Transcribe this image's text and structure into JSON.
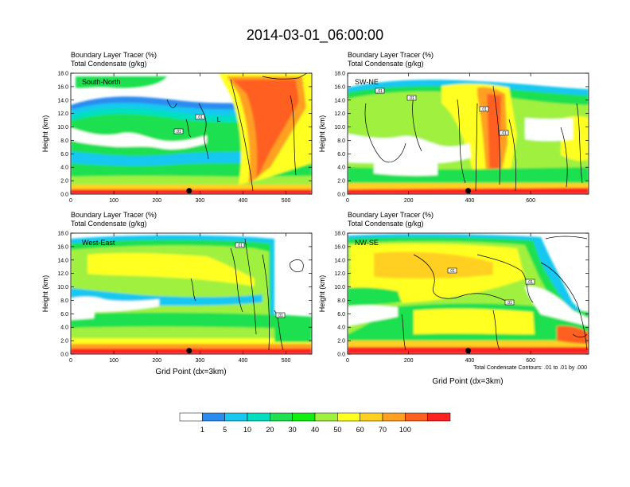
{
  "title": "2014-03-01_06:00:00",
  "chart_data": [
    {
      "type": "heatmap",
      "label": "South-North",
      "subtitle_1": "Boundary Layer Tracer (%)",
      "subtitle_2": "Total Condensate (g/kg)",
      "ylabel": "Height (km)",
      "xlabel": "",
      "xlim": [
        0,
        560
      ],
      "ylim": [
        0,
        18
      ],
      "x_ticks": [
        "0",
        "100",
        "200",
        "300",
        "400",
        "500"
      ],
      "y_ticks": [
        "0.0",
        "2.0",
        "4.0",
        "6.0",
        "8.0",
        "10.0",
        "12.0",
        "14.0",
        "16.0",
        "18.0"
      ],
      "marker_x": 275,
      "contour_labels": [
        ".01",
        ".01",
        "L"
      ]
    },
    {
      "type": "heatmap",
      "label": "SW-NE",
      "subtitle_1": "Boundary Layer Tracer (%)",
      "subtitle_2": "Total Condensate (g/kg)",
      "ylabel": "Height (km)",
      "xlabel": "",
      "xlim": [
        0,
        790
      ],
      "ylim": [
        0,
        18
      ],
      "x_ticks": [
        "0",
        "200",
        "400",
        "600"
      ],
      "y_ticks": [
        "0.0",
        "2.0",
        "4.0",
        "6.0",
        "8.0",
        "10.0",
        "12.0",
        "14.0",
        "16.0",
        "18.0"
      ],
      "marker_x": 395,
      "contour_labels": [
        ".01",
        ".01",
        ".01",
        ".01"
      ]
    },
    {
      "type": "heatmap",
      "label": "West-East",
      "subtitle_1": "Boundary Layer Tracer (%)",
      "subtitle_2": "Total Condensate (g/kg)",
      "ylabel": "Height (km)",
      "xlabel": "Grid Point (dx=3km)",
      "xlim": [
        0,
        560
      ],
      "ylim": [
        0,
        18
      ],
      "x_ticks": [
        "0",
        "100",
        "200",
        "300",
        "400",
        "500"
      ],
      "y_ticks": [
        "0.0",
        "2.0",
        "4.0",
        "6.0",
        "8.0",
        "10.0",
        "12.0",
        "14.0",
        "16.0",
        "18.0"
      ],
      "marker_x": 275,
      "contour_labels": [
        ".01",
        ".01"
      ]
    },
    {
      "type": "heatmap",
      "label": "NW-SE",
      "subtitle_1": "Boundary Layer Tracer (%)",
      "subtitle_2": "Total Condensate (g/kg)",
      "ylabel": "Height (km)",
      "xlabel": "Grid Point (dx=3km)",
      "xlim": [
        0,
        790
      ],
      "ylim": [
        0,
        18
      ],
      "x_ticks": [
        "0",
        "200",
        "400",
        "600"
      ],
      "y_ticks": [
        "0.0",
        "2.0",
        "4.0",
        "6.0",
        "8.0",
        "10.0",
        "12.0",
        "14.0",
        "16.0",
        "18.0"
      ],
      "marker_x": 395,
      "contour_labels": [
        ".01",
        ".01",
        ".01"
      ],
      "footnote": "Total Condensate Contours: .01 to .01 by .000"
    }
  ],
  "colorbar": {
    "labels": [
      "1",
      "5",
      "10",
      "20",
      "30",
      "40",
      "50",
      "60",
      "70",
      "100"
    ],
    "colors": [
      "#ffffff",
      "#2a8cf0",
      "#19c8f0",
      "#00e0c0",
      "#1ee050",
      "#10f010",
      "#a0f040",
      "#ffff20",
      "#ffd020",
      "#ffa020",
      "#ff6020",
      "#ff2020"
    ]
  }
}
